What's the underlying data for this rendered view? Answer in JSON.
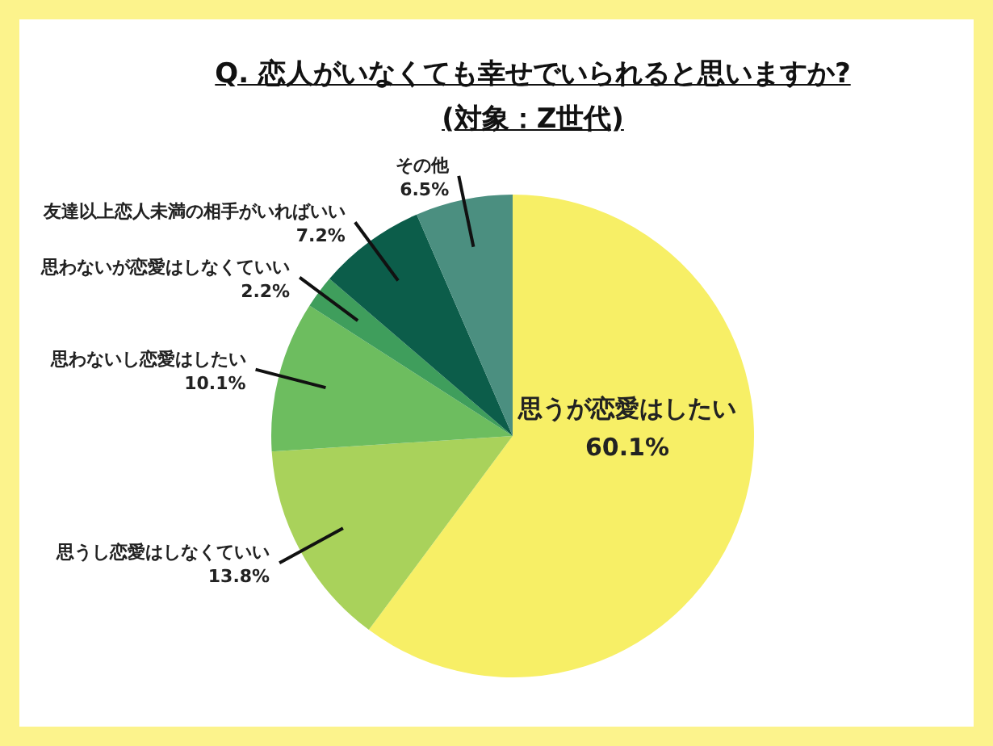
{
  "chart_data": {
    "type": "pie",
    "title": "Q. 恋人がいなくても幸せでいられると思いますか?\n(対象：Z世代)",
    "categories": [
      "思うが恋愛はしたい",
      "思うし恋愛はしなくていい",
      "思わないし恋愛はしたい",
      "思わないが恋愛はしなくていい",
      "友達以上恋人未満の相手がいればいい",
      "その他"
    ],
    "values": [
      60.1,
      13.8,
      10.1,
      2.2,
      7.2,
      6.5
    ],
    "value_labels": [
      "60.1%",
      "13.8%",
      "10.1%",
      "2.2%",
      "7.2%",
      "6.5%"
    ],
    "colors": [
      "#f7ef66",
      "#a9d25b",
      "#6dbd5f",
      "#3f9e5c",
      "#0c5d4a",
      "#4b8f80"
    ],
    "legend": false
  }
}
